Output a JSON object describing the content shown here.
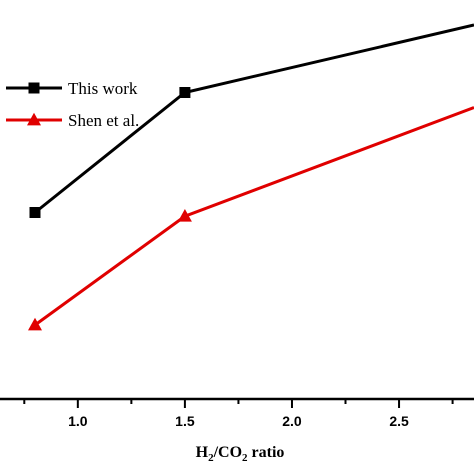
{
  "chart_data": {
    "type": "line",
    "xlabel": "H2/CO2 ratio",
    "xlabel_parts": {
      "a": "H",
      "a_sub": "2",
      "b": "/CO",
      "b_sub": "2",
      "c": " ratio"
    },
    "xlim": [
      0.8,
      2.85
    ],
    "ylim": [
      0,
      1
    ],
    "x_ticks": [
      1.0,
      1.5,
      2.0,
      2.5
    ],
    "x_tick_labels": [
      "1.0",
      "1.5",
      "2.0",
      "2.5"
    ],
    "grid": false,
    "legend_position": "top-left",
    "series": [
      {
        "name": "This work",
        "color": "#000000",
        "marker": "square",
        "x": [
          0.8,
          1.5,
          2.85
        ],
        "y": [
          0.5,
          0.82,
          1.0
        ]
      },
      {
        "name": "Shen et al.",
        "color": "#e00000",
        "marker": "triangle",
        "x": [
          0.8,
          1.5,
          2.85
        ],
        "y": [
          0.2,
          0.49,
          0.78
        ]
      }
    ]
  }
}
